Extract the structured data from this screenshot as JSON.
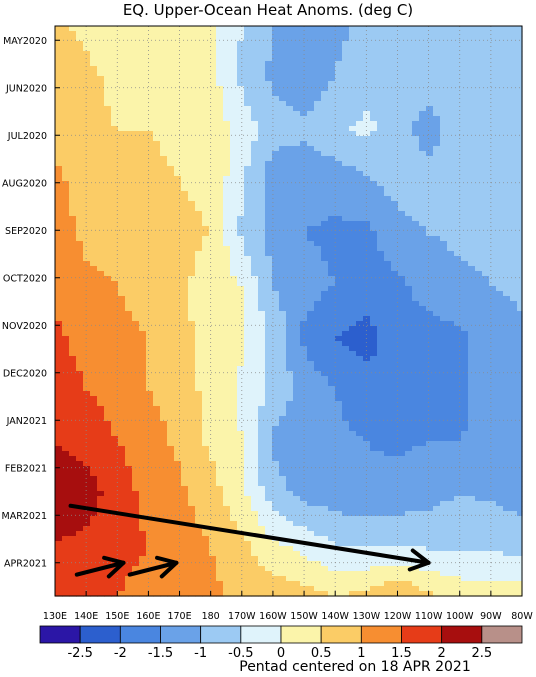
{
  "chart_data": {
    "type": "heatmap",
    "title": "EQ. Upper-Ocean Heat Anoms. (deg C)",
    "caption": "Pentad centered on 18 APR 2021",
    "y_tick_labels": [
      "MAY2020",
      "JUN2020",
      "JUL2020",
      "AUG2020",
      "SEP2020",
      "OCT2020",
      "NOV2020",
      "DEC2020",
      "JAN2021",
      "FEB2021",
      "MAR2021",
      "APR2021"
    ],
    "x_tick_labels": [
      "130E",
      "140E",
      "150E",
      "160E",
      "170E",
      "180",
      "170W",
      "160W",
      "150W",
      "140W",
      "130W",
      "120W",
      "110W",
      "100W",
      "90W",
      "80W"
    ],
    "colorbar": {
      "tick_labels": [
        "-2.5",
        "-2",
        "-1.5",
        "-1",
        "-0.5",
        "0",
        "0.5",
        "1",
        "1.5",
        "2",
        "2.5"
      ],
      "levels": [
        -2.5,
        -2,
        -1.5,
        -1,
        -0.5,
        0,
        0.5,
        1,
        1.5,
        2,
        2.5
      ],
      "colors": [
        "#2b16a6",
        "#2c5fce",
        "#4a86e0",
        "#6aa2e8",
        "#9ccaf3",
        "#dff3fb",
        "#fbf4aa",
        "#fbcc66",
        "#f78e31",
        "#e63c18",
        "#a70e0e",
        "#b89089"
      ]
    },
    "grid": true,
    "grid_style": "dotted",
    "lon_range": [
      130,
      280
    ],
    "month_count": 12,
    "rows": [
      [
        0.6,
        0.4,
        0.2,
        0.2,
        0.3,
        0.1,
        -0.5,
        -1.0,
        -1.2,
        -1.1,
        -0.9,
        -1.0,
        -0.8,
        -0.7,
        -0.6,
        -0.6
      ],
      [
        0.9,
        0.6,
        0.4,
        0.4,
        0.4,
        0.2,
        -0.6,
        -1.1,
        -1.3,
        -1.0,
        -0.7,
        -0.7,
        -0.7,
        -0.8,
        -0.9,
        -1.0
      ],
      [
        0.9,
        0.6,
        0.5,
        0.5,
        0.4,
        0.3,
        -0.2,
        -0.8,
        -0.9,
        -0.6,
        -0.4,
        -0.7,
        -1.3,
        -0.6,
        -0.9,
        -1.0
      ],
      [
        1.1,
        0.8,
        0.7,
        0.6,
        0.5,
        0.4,
        -0.4,
        -1.3,
        -1.3,
        -1.3,
        -1.1,
        -0.8,
        -0.7,
        -0.6,
        -0.7,
        -0.9
      ],
      [
        1.2,
        0.9,
        0.8,
        0.7,
        0.6,
        0.5,
        -0.6,
        -1.2,
        -1.5,
        -1.6,
        -1.6,
        -1.2,
        -1.0,
        -0.9,
        -0.9,
        -0.9
      ],
      [
        1.4,
        1.1,
        1.0,
        0.8,
        0.6,
        0.3,
        0.0,
        -1.0,
        -1.3,
        -1.5,
        -1.7,
        -1.6,
        -1.3,
        -1.1,
        -1.0,
        -0.9
      ],
      [
        1.6,
        1.3,
        1.1,
        1.0,
        0.7,
        0.2,
        0.1,
        -0.6,
        -1.6,
        -2.0,
        -2.2,
        -1.7,
        -1.7,
        -1.6,
        -1.3,
        -1.1
      ],
      [
        1.8,
        1.5,
        1.3,
        1.0,
        0.8,
        0.3,
        -0.1,
        -0.6,
        -1.2,
        -1.5,
        -1.8,
        -1.9,
        -1.8,
        -1.6,
        -1.3,
        -1.2
      ],
      [
        2.0,
        1.8,
        1.5,
        1.2,
        0.9,
        0.4,
        0.0,
        -1.1,
        -1.3,
        -1.4,
        -1.5,
        -1.6,
        -1.5,
        -1.5,
        -1.4,
        -1.4
      ],
      [
        2.3,
        2.2,
        1.8,
        1.3,
        1.1,
        0.7,
        0.1,
        -0.8,
        -1.2,
        -1.3,
        -1.4,
        -1.3,
        -1.2,
        -1.0,
        -1.1,
        -1.2
      ],
      [
        2.0,
        1.9,
        1.7,
        1.5,
        1.2,
        1.0,
        0.6,
        0.1,
        -0.2,
        -0.5,
        -0.6,
        -0.6,
        -0.6,
        -0.6,
        -0.6,
        -0.8
      ],
      [
        1.7,
        1.6,
        1.5,
        1.3,
        1.2,
        1.1,
        0.9,
        0.8,
        0.7,
        0.5,
        0.6,
        1.0,
        0.6,
        0.3,
        0.2,
        0.3
      ]
    ],
    "arrows": [
      {
        "from": [
          135,
          9.8
        ],
        "to": [
          250,
          11.0
        ]
      },
      {
        "from": [
          137,
          11.25
        ],
        "to": [
          152,
          11.0
        ]
      },
      {
        "from": [
          154,
          11.25
        ],
        "to": [
          169,
          11.0
        ]
      }
    ]
  }
}
